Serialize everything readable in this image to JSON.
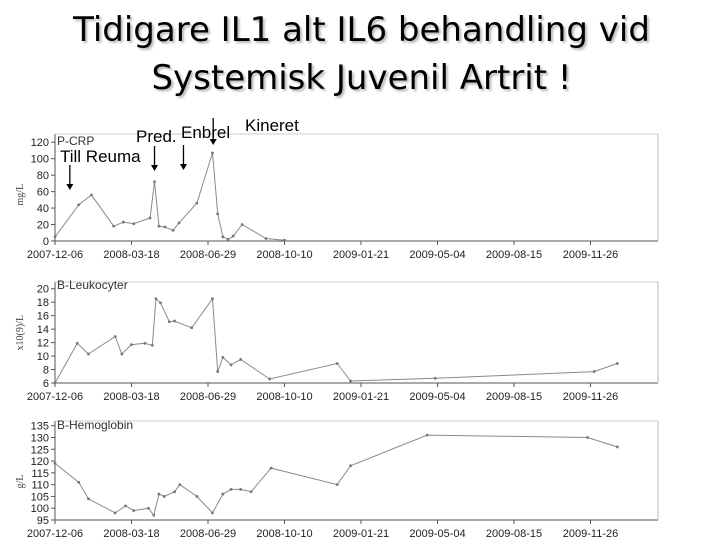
{
  "title_line1": "Tidigare IL1 alt IL6 behandling vid",
  "title_line2": "Systemisk Juvenil Artrit !",
  "annotations": [
    {
      "label": "Till Reuma",
      "date": "2007-12-26"
    },
    {
      "label": "Pred.",
      "date": "2008-04-18"
    },
    {
      "label": "Enbrel",
      "date": "2008-05-27"
    },
    {
      "label": "Kineret",
      "date": "2008-07-06"
    }
  ],
  "chart_data": [
    {
      "type": "line",
      "title": "P-CRP",
      "ylabel": "mg/L",
      "ylim": [
        0,
        130
      ],
      "yticks": [
        0,
        20,
        40,
        60,
        80,
        100,
        120
      ],
      "xticks": [
        "2007-12-06",
        "2008-03-18",
        "2008-06-29",
        "2008-10-10",
        "2009-01-21",
        "2009-05-04",
        "2009-08-15",
        "2009-11-26"
      ],
      "x": [
        "2007-12-06",
        "2008-01-07",
        "2008-01-24",
        "2008-02-23",
        "2008-03-07",
        "2008-03-21",
        "2008-04-12",
        "2008-04-18",
        "2008-04-24",
        "2008-05-02",
        "2008-05-13",
        "2008-05-21",
        "2008-06-14",
        "2008-07-05",
        "2008-07-12",
        "2008-07-19",
        "2008-07-26",
        "2008-08-02",
        "2008-08-14",
        "2008-09-15",
        "2008-10-10"
      ],
      "y": [
        5,
        44,
        56,
        18,
        23,
        21,
        28,
        72,
        18,
        17,
        13,
        22,
        46,
        107,
        33,
        5,
        2,
        6,
        20,
        3,
        1
      ]
    },
    {
      "type": "line",
      "title": "B-Leukocyter",
      "ylabel": "x10(9)/L",
      "ylim": [
        6,
        21
      ],
      "yticks": [
        6,
        8,
        10,
        12,
        14,
        16,
        18,
        20
      ],
      "xticks": [
        "2007-12-06",
        "2008-03-18",
        "2008-06-29",
        "2008-10-10",
        "2009-01-21",
        "2009-05-04",
        "2009-08-15",
        "2009-11-26"
      ],
      "x": [
        "2007-12-06",
        "2008-01-05",
        "2008-01-20",
        "2008-02-25",
        "2008-03-05",
        "2008-03-18",
        "2008-04-05",
        "2008-04-15",
        "2008-04-20",
        "2008-04-26",
        "2008-05-08",
        "2008-05-15",
        "2008-06-07",
        "2008-07-05",
        "2008-07-12",
        "2008-07-19",
        "2008-07-30",
        "2008-08-12",
        "2008-09-20",
        "2008-12-20",
        "2009-01-07",
        "2009-05-01",
        "2009-12-01",
        "2010-01-01"
      ],
      "y": [
        6,
        11.9,
        10.3,
        12.9,
        10.3,
        11.7,
        11.9,
        11.6,
        18.5,
        17.9,
        15.1,
        15.2,
        14.2,
        18.5,
        7.7,
        9.8,
        8.7,
        9.5,
        6.6,
        8.9,
        6.3,
        6.7,
        7.7,
        8.9
      ]
    },
    {
      "type": "line",
      "title": "B-Hemoglobin",
      "ylabel": "g/L",
      "ylim": [
        95,
        137
      ],
      "yticks": [
        95,
        100,
        105,
        110,
        115,
        120,
        125,
        130,
        135
      ],
      "xticks": [
        "2007-12-06",
        "2008-03-18",
        "2008-06-29",
        "2008-10-10",
        "2009-01-21",
        "2009-05-04",
        "2009-08-15",
        "2009-11-26"
      ],
      "x": [
        "2007-12-06",
        "2008-01-07",
        "2008-01-20",
        "2008-02-25",
        "2008-03-10",
        "2008-03-21",
        "2008-04-10",
        "2008-04-17",
        "2008-04-24",
        "2008-05-01",
        "2008-05-15",
        "2008-05-22",
        "2008-06-14",
        "2008-07-05",
        "2008-07-19",
        "2008-07-30",
        "2008-08-12",
        "2008-08-26",
        "2008-09-22",
        "2008-12-20",
        "2009-01-07",
        "2009-04-20",
        "2009-11-22",
        "2010-01-01"
      ],
      "y": [
        119,
        111,
        104,
        98,
        101,
        99,
        100,
        97,
        106,
        105,
        107,
        110,
        105,
        98,
        106,
        108,
        108,
        107,
        117,
        110,
        118,
        131,
        130,
        126
      ]
    }
  ]
}
